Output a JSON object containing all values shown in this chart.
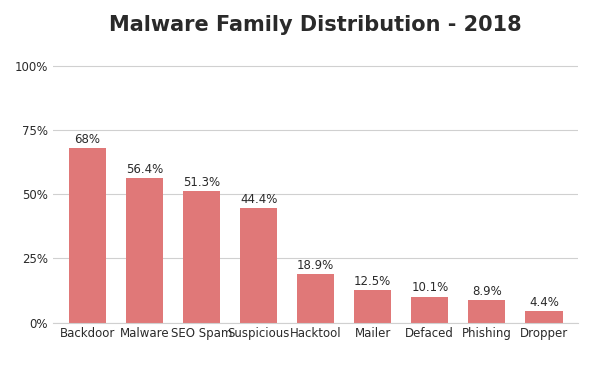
{
  "title": "Malware Family Distribution - 2018",
  "categories": [
    "Backdoor",
    "Malware",
    "SEO Spam",
    "Suspicious",
    "Hacktool",
    "Mailer",
    "Defaced",
    "Phishing",
    "Dropper"
  ],
  "values": [
    68.0,
    56.4,
    51.3,
    44.4,
    18.9,
    12.5,
    10.1,
    8.9,
    4.4
  ],
  "labels": [
    "68%",
    "56.4%",
    "51.3%",
    "44.4%",
    "18.9%",
    "12.5%",
    "10.1%",
    "8.9%",
    "4.4%"
  ],
  "bar_color": "#e07878",
  "background_color": "#ffffff",
  "title_fontsize": 15,
  "label_fontsize": 8.5,
  "tick_fontsize": 8.5,
  "ylim": [
    0,
    108
  ],
  "yticks": [
    0,
    25,
    50,
    75,
    100
  ],
  "ytick_labels": [
    "0%",
    "25%",
    "50%",
    "75%",
    "100%"
  ],
  "grid_color": "#d0d0d0",
  "text_color": "#2a2a2a"
}
